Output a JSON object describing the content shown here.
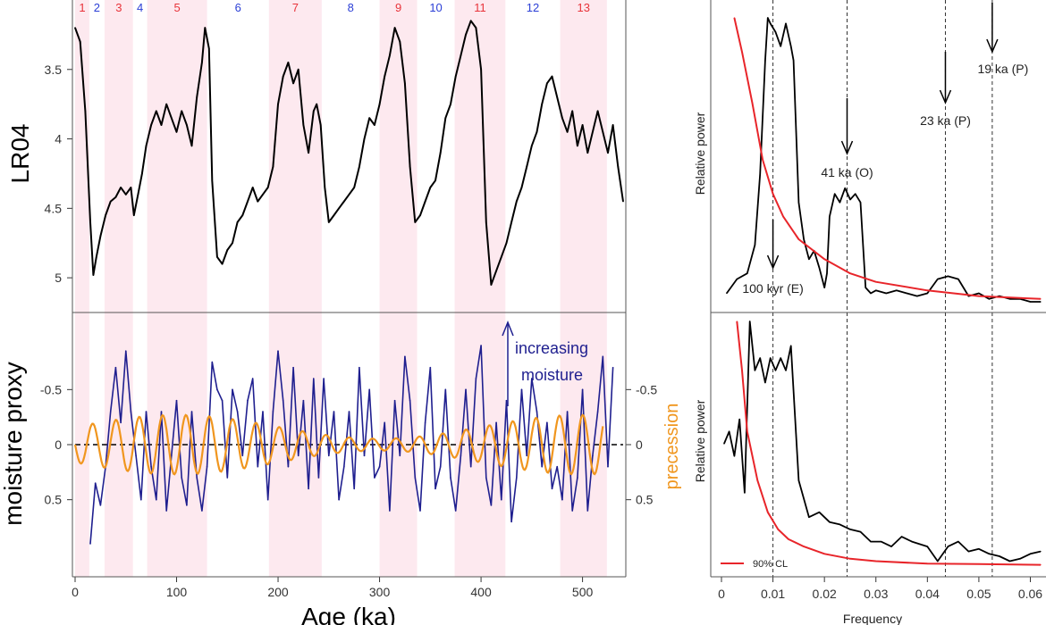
{
  "colors": {
    "stage_shade": "#fde9ef",
    "odd_stage_label": "#e8333a",
    "even_stage_label": "#2b3fd6",
    "lr04_line": "#000000",
    "moisture_line": "#1f1f8f",
    "precession_line": "#f0961e",
    "spectrum_line": "#000000",
    "confidence_line": "#e8252a",
    "axis": "#333333"
  },
  "chart_data": [
    {
      "id": "lr04",
      "type": "line",
      "ylabel": "LR04",
      "ylim": [
        5.25,
        3.0
      ],
      "y_reversed": true,
      "xlim": [
        0,
        540
      ],
      "yticks": [
        "3.5",
        "4",
        "4.5",
        "5"
      ],
      "ytick_values": [
        3.5,
        4.0,
        4.5,
        5.0
      ],
      "stages": [
        {
          "label": "1",
          "start": 0,
          "end": 14,
          "shaded": true
        },
        {
          "label": "2",
          "start": 14,
          "end": 29,
          "shaded": false
        },
        {
          "label": "3",
          "start": 29,
          "end": 57,
          "shaded": true
        },
        {
          "label": "4",
          "start": 57,
          "end": 71,
          "shaded": false
        },
        {
          "label": "5",
          "start": 71,
          "end": 130,
          "shaded": true
        },
        {
          "label": "6",
          "start": 130,
          "end": 191,
          "shaded": false
        },
        {
          "label": "7",
          "start": 191,
          "end": 243,
          "shaded": true
        },
        {
          "label": "8",
          "start": 243,
          "end": 300,
          "shaded": false
        },
        {
          "label": "9",
          "start": 300,
          "end": 337,
          "shaded": true
        },
        {
          "label": "10",
          "start": 337,
          "end": 374,
          "shaded": false
        },
        {
          "label": "11",
          "start": 374,
          "end": 424,
          "shaded": true
        },
        {
          "label": "12",
          "start": 424,
          "end": 478,
          "shaded": false
        },
        {
          "label": "13",
          "start": 478,
          "end": 524,
          "shaded": true
        }
      ],
      "series": [
        {
          "x": [
            0,
            5,
            10,
            15,
            18,
            21,
            25,
            30,
            35,
            40,
            45,
            50,
            55,
            58,
            62,
            66,
            70,
            75,
            80,
            85,
            90,
            95,
            100,
            105,
            110,
            115,
            120,
            125,
            128,
            132,
            135,
            140,
            145,
            150,
            155,
            160,
            165,
            170,
            175,
            180,
            185,
            190,
            195,
            200,
            205,
            210,
            215,
            220,
            225,
            230,
            235,
            238,
            242,
            246,
            250,
            255,
            260,
            265,
            270,
            275,
            280,
            285,
            290,
            295,
            300,
            305,
            310,
            315,
            320,
            325,
            330,
            335,
            340,
            345,
            350,
            355,
            360,
            365,
            370,
            375,
            380,
            385,
            390,
            395,
            400,
            405,
            410,
            415,
            420,
            425,
            430,
            435,
            440,
            445,
            450,
            455,
            460,
            465,
            470,
            475,
            480,
            485,
            490,
            495,
            500,
            505,
            510,
            515,
            520,
            525,
            530,
            535,
            540
          ],
          "y": [
            3.2,
            3.3,
            3.8,
            4.6,
            4.98,
            4.85,
            4.7,
            4.55,
            4.45,
            4.42,
            4.35,
            4.4,
            4.35,
            4.55,
            4.4,
            4.25,
            4.05,
            3.9,
            3.8,
            3.9,
            3.75,
            3.85,
            3.95,
            3.8,
            3.9,
            4.05,
            3.7,
            3.45,
            3.2,
            3.35,
            4.3,
            4.85,
            4.9,
            4.8,
            4.75,
            4.6,
            4.55,
            4.45,
            4.35,
            4.45,
            4.4,
            4.35,
            4.2,
            3.75,
            3.55,
            3.45,
            3.6,
            3.5,
            3.9,
            4.1,
            3.8,
            3.75,
            3.9,
            4.35,
            4.6,
            4.55,
            4.5,
            4.45,
            4.4,
            4.35,
            4.2,
            4.0,
            3.85,
            3.9,
            3.75,
            3.55,
            3.4,
            3.2,
            3.3,
            3.6,
            4.2,
            4.6,
            4.55,
            4.45,
            4.35,
            4.3,
            4.1,
            3.85,
            3.75,
            3.55,
            3.4,
            3.25,
            3.15,
            3.2,
            3.5,
            4.6,
            5.05,
            4.95,
            4.85,
            4.75,
            4.6,
            4.45,
            4.35,
            4.2,
            4.05,
            3.95,
            3.75,
            3.6,
            3.55,
            3.7,
            3.85,
            3.95,
            3.8,
            4.05,
            3.9,
            4.1,
            3.95,
            3.8,
            3.95,
            4.1,
            3.9,
            4.2,
            4.45
          ]
        }
      ]
    },
    {
      "id": "moisture",
      "type": "line",
      "ylabel": "moisture proxy",
      "ylim": [
        1.2,
        -1.2
      ],
      "y_reversed": true,
      "xlim": [
        0,
        540
      ],
      "xlabel": "Age (ka)",
      "xticks": [
        "0",
        "100",
        "200",
        "300",
        "400",
        "500"
      ],
      "xtick_values": [
        0,
        100,
        200,
        300,
        400,
        500
      ],
      "yticks": [
        "-0.5",
        "0",
        "0.5"
      ],
      "ytick_values": [
        -0.5,
        0,
        0.5
      ],
      "right_ylabel": "precession",
      "right_yticks": [
        "-0.5",
        "0",
        "0.5"
      ],
      "right_ytick_values": [
        -0.5,
        0,
        0.5
      ],
      "annotation": {
        "line1": "increasing",
        "line2": "moisture"
      },
      "series": [
        {
          "role": "moisture",
          "x": [
            15,
            20,
            25,
            30,
            35,
            40,
            45,
            50,
            55,
            60,
            65,
            70,
            75,
            80,
            85,
            90,
            95,
            100,
            105,
            110,
            115,
            120,
            125,
            130,
            135,
            140,
            145,
            150,
            155,
            160,
            165,
            170,
            175,
            180,
            185,
            190,
            195,
            200,
            205,
            210,
            215,
            220,
            225,
            230,
            235,
            240,
            245,
            250,
            255,
            260,
            265,
            270,
            275,
            280,
            285,
            290,
            295,
            300,
            305,
            310,
            315,
            320,
            325,
            330,
            335,
            340,
            345,
            350,
            355,
            360,
            365,
            370,
            375,
            380,
            385,
            390,
            395,
            400,
            405,
            410,
            415,
            420,
            425,
            430,
            435,
            440,
            445,
            450,
            455,
            460,
            465,
            470,
            475,
            480,
            485,
            490,
            495,
            500,
            505,
            510,
            515,
            520,
            525,
            530
          ],
          "y": [
            0.9,
            0.35,
            0.55,
            0.2,
            -0.3,
            -0.7,
            -0.2,
            -0.85,
            -0.3,
            0.1,
            0.5,
            -0.3,
            0.2,
            0.5,
            -0.3,
            0.6,
            0.1,
            -0.4,
            0.3,
            0.55,
            -0.3,
            0.3,
            0.6,
            0.2,
            -0.75,
            -0.5,
            -0.4,
            0.3,
            -0.5,
            -0.3,
            0.1,
            -0.4,
            -0.6,
            0.2,
            -0.3,
            0.5,
            -0.3,
            -0.85,
            -0.4,
            0.2,
            -0.7,
            0.1,
            -0.4,
            0.4,
            -0.6,
            0.3,
            -0.6,
            0.1,
            -0.3,
            0.5,
            0.2,
            -0.3,
            0.4,
            -0.7,
            0.1,
            -0.5,
            0.3,
            0.2,
            -0.2,
            0.6,
            -0.4,
            0.1,
            -0.8,
            -0.4,
            0.3,
            0.6,
            -0.2,
            -0.7,
            0.4,
            0.2,
            -0.5,
            0.3,
            0.6,
            0.1,
            -0.5,
            0.2,
            -0.6,
            -0.9,
            0.3,
            0.55,
            -0.2,
            0.5,
            -0.4,
            0.7,
            0.3,
            -0.5,
            0.1,
            -0.6,
            -0.3,
            0.2,
            -0.2,
            0.4,
            0.2,
            0.5,
            -0.3,
            0.6,
            0.3,
            -0.5,
            0.6,
            0.1,
            -0.3,
            -0.8,
            0.2,
            -0.7
          ]
        },
        {
          "role": "precession",
          "period": 23,
          "amplitude": 0.27,
          "xrange": [
            0,
            520
          ]
        }
      ]
    },
    {
      "id": "spectrum-lr04",
      "type": "line",
      "ylabel": "Relative power",
      "xlim": [
        0,
        0.062
      ],
      "ylim": [
        0,
        1.0
      ],
      "reference_lines": [
        0.01,
        0.0244,
        0.0435,
        0.0526
      ],
      "annotations": [
        {
          "text": "100 kyr (E)",
          "x": 0.01,
          "y": 0.1
        },
        {
          "text": "41 ka (O)",
          "x": 0.0244,
          "y": 0.5
        },
        {
          "text": "23 ka (P)",
          "x": 0.0435,
          "y": 0.73
        },
        {
          "text": "19 ka (P)",
          "x": 0.0526,
          "y": 0.93
        }
      ],
      "series": [
        {
          "role": "spectrum",
          "x": [
            0.001,
            0.003,
            0.005,
            0.0065,
            0.0075,
            0.0085,
            0.009,
            0.0095,
            0.0105,
            0.0115,
            0.0125,
            0.0135,
            0.014,
            0.0145,
            0.015,
            0.016,
            0.017,
            0.018,
            0.019,
            0.02,
            0.0205,
            0.021,
            0.022,
            0.023,
            0.024,
            0.025,
            0.026,
            0.027,
            0.028,
            0.029,
            0.03,
            0.032,
            0.034,
            0.036,
            0.038,
            0.04,
            0.042,
            0.044,
            0.046,
            0.048,
            0.05,
            0.052,
            0.054,
            0.056,
            0.058,
            0.06,
            0.062
          ],
          "y": [
            0.03,
            0.08,
            0.1,
            0.2,
            0.45,
            0.85,
            1.0,
            0.98,
            0.95,
            0.9,
            0.98,
            0.9,
            0.85,
            0.6,
            0.35,
            0.22,
            0.15,
            0.18,
            0.12,
            0.05,
            0.1,
            0.3,
            0.38,
            0.35,
            0.4,
            0.36,
            0.38,
            0.35,
            0.05,
            0.03,
            0.04,
            0.03,
            0.04,
            0.03,
            0.02,
            0.03,
            0.08,
            0.09,
            0.08,
            0.02,
            0.03,
            0.01,
            0.02,
            0.01,
            0.01,
            0.0,
            0.0
          ]
        },
        {
          "role": "confidence",
          "x": [
            0.0025,
            0.004,
            0.006,
            0.008,
            0.01,
            0.012,
            0.015,
            0.02,
            0.025,
            0.03,
            0.04,
            0.05,
            0.062
          ],
          "y": [
            1.0,
            0.88,
            0.7,
            0.5,
            0.38,
            0.3,
            0.22,
            0.15,
            0.1,
            0.07,
            0.04,
            0.02,
            0.01
          ]
        }
      ]
    },
    {
      "id": "spectrum-moisture",
      "type": "line",
      "ylabel": "Relative power",
      "xlabel": "Frequency",
      "xlim": [
        0,
        0.062
      ],
      "ylim": [
        0,
        1.0
      ],
      "xticks": [
        "0",
        "0.01",
        "0.02",
        "0.03",
        "0.04",
        "0.05",
        "0.06"
      ],
      "xtick_values": [
        0,
        0.01,
        0.02,
        0.03,
        0.04,
        0.05,
        0.06
      ],
      "reference_lines": [
        0.01,
        0.0244,
        0.0435,
        0.0526
      ],
      "legend": {
        "label": "90% CL"
      },
      "series": [
        {
          "role": "spectrum",
          "x": [
            0.0005,
            0.0015,
            0.0025,
            0.0035,
            0.0045,
            0.0055,
            0.0065,
            0.0075,
            0.0085,
            0.0095,
            0.0105,
            0.0115,
            0.0125,
            0.0135,
            0.015,
            0.017,
            0.019,
            0.021,
            0.023,
            0.025,
            0.027,
            0.029,
            0.031,
            0.033,
            0.035,
            0.037,
            0.04,
            0.042,
            0.044,
            0.046,
            0.048,
            0.05,
            0.052,
            0.054,
            0.056,
            0.058,
            0.06,
            0.062
          ],
          "y": [
            0.5,
            0.55,
            0.45,
            0.6,
            0.3,
            1.0,
            0.8,
            0.85,
            0.75,
            0.85,
            0.8,
            0.85,
            0.8,
            0.9,
            0.35,
            0.2,
            0.22,
            0.18,
            0.17,
            0.15,
            0.14,
            0.1,
            0.1,
            0.08,
            0.12,
            0.1,
            0.08,
            0.02,
            0.08,
            0.1,
            0.06,
            0.07,
            0.05,
            0.04,
            0.02,
            0.03,
            0.05,
            0.06
          ]
        },
        {
          "role": "confidence",
          "x": [
            0.003,
            0.004,
            0.005,
            0.007,
            0.009,
            0.011,
            0.013,
            0.016,
            0.02,
            0.025,
            0.03,
            0.04,
            0.05,
            0.062
          ],
          "y": [
            1.0,
            0.8,
            0.55,
            0.35,
            0.22,
            0.15,
            0.11,
            0.08,
            0.05,
            0.03,
            0.02,
            0.01,
            0.008,
            0.005
          ]
        }
      ]
    }
  ]
}
